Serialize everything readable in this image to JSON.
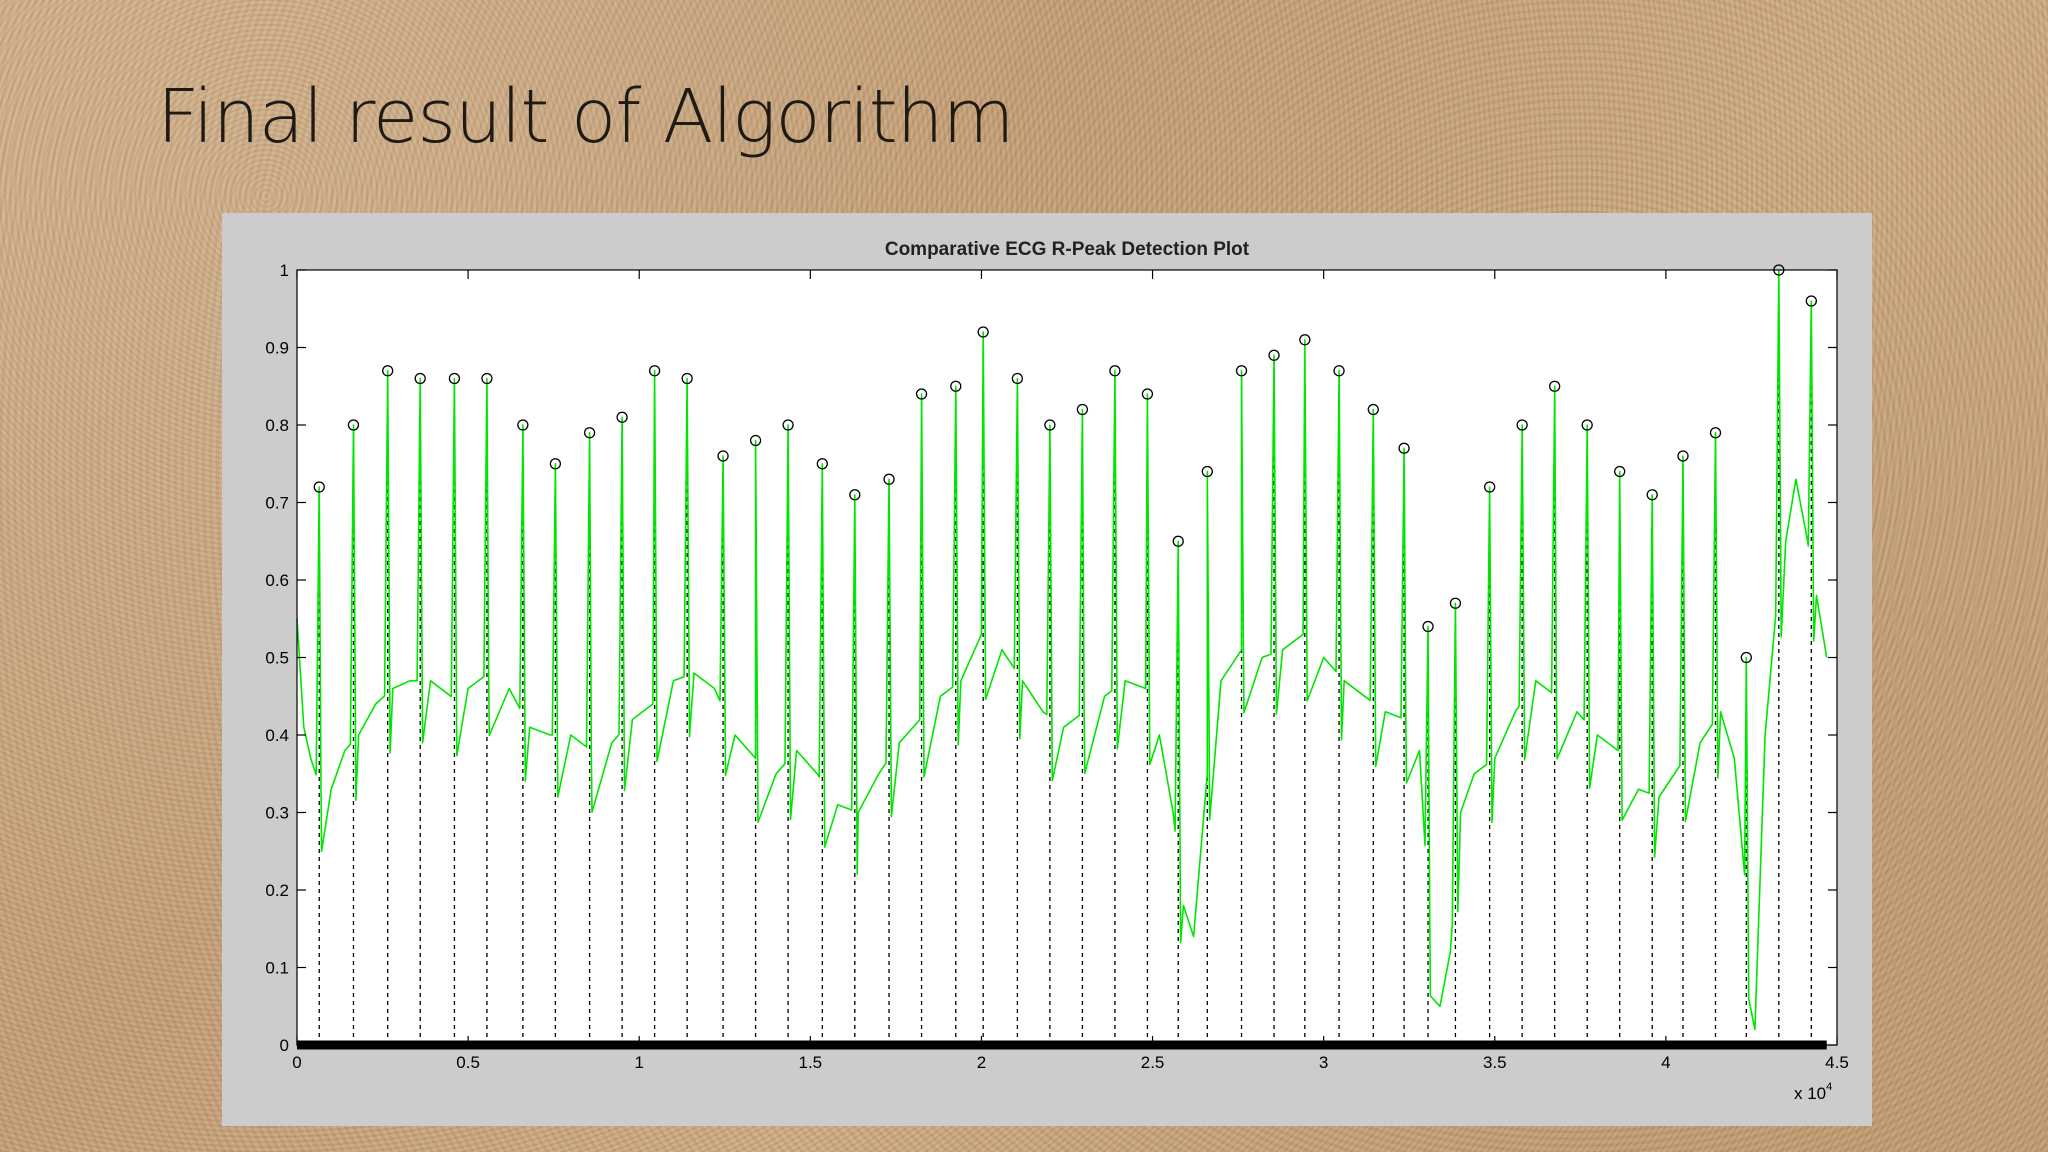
{
  "slide": {
    "title": "Final result of Algorithm"
  },
  "colors": {
    "signal": "#00e600",
    "stem": "#000000",
    "figure_bg": "#cccccc",
    "axes_bg": "#ffffff"
  },
  "chart_data": {
    "type": "line",
    "title": "Comparative ECG R-Peak Detection Plot",
    "xlabel": "",
    "ylabel": "",
    "x_exponent_label": "x 10",
    "x_exponent_power": "4",
    "xlim": [
      0,
      45000
    ],
    "ylim": [
      0,
      1
    ],
    "x_ticks": [
      0,
      5000,
      10000,
      15000,
      20000,
      25000,
      30000,
      35000,
      40000,
      45000
    ],
    "x_tick_labels": [
      "0",
      "0.5",
      "1",
      "1.5",
      "2",
      "2.5",
      "3",
      "3.5",
      "4",
      "4.5"
    ],
    "y_ticks": [
      0,
      0.1,
      0.2,
      0.3,
      0.4,
      0.5,
      0.6,
      0.7,
      0.8,
      0.9,
      1
    ],
    "y_tick_labels": [
      "0",
      "0.1",
      "0.2",
      "0.3",
      "0.4",
      "0.5",
      "0.6",
      "0.7",
      "0.8",
      "0.9",
      "1"
    ],
    "grid": false,
    "legend": "none",
    "series": [
      {
        "kind": "ecg-signal",
        "x": [
          0,
          200,
          400,
          700,
          1000,
          1400,
          1800,
          2300,
          2800,
          3300,
          3900,
          4500,
          5000,
          5600,
          6200,
          6800,
          7400,
          8000,
          8600,
          9200,
          9800,
          10400,
          11000,
          11600,
          12200,
          12800,
          13400,
          14000,
          14600,
          15200,
          15800,
          16400,
          17000,
          17600,
          18200,
          18800,
          19400,
          20000,
          20600,
          21200,
          21800,
          22400,
          23000,
          23600,
          24200,
          24800,
          25200,
          25600,
          25900,
          26200,
          26600,
          27000,
          27600,
          28200,
          28800,
          29400,
          30000,
          30600,
          31200,
          31800,
          32400,
          32800,
          33100,
          33400,
          33700,
          34000,
          34400,
          35000,
          35600,
          36200,
          36800,
          37400,
          38000,
          38600,
          39200,
          39800,
          40400,
          41000,
          41600,
          42000,
          42300,
          42600,
          42900,
          43200,
          43500,
          43800,
          44100,
          44400,
          44700
        ],
        "y": [
          0.55,
          0.41,
          0.37,
          0.33,
          0.33,
          0.38,
          0.4,
          0.44,
          0.46,
          0.47,
          0.47,
          0.45,
          0.46,
          0.48,
          0.46,
          0.41,
          0.4,
          0.4,
          0.38,
          0.39,
          0.42,
          0.44,
          0.47,
          0.48,
          0.46,
          0.4,
          0.37,
          0.35,
          0.38,
          0.35,
          0.31,
          0.3,
          0.35,
          0.39,
          0.42,
          0.45,
          0.47,
          0.53,
          0.51,
          0.47,
          0.43,
          0.41,
          0.43,
          0.45,
          0.47,
          0.46,
          0.4,
          0.3,
          0.18,
          0.14,
          0.35,
          0.47,
          0.51,
          0.5,
          0.51,
          0.53,
          0.5,
          0.47,
          0.45,
          0.43,
          0.42,
          0.38,
          0.15,
          0.05,
          0.12,
          0.3,
          0.35,
          0.37,
          0.43,
          0.47,
          0.45,
          0.43,
          0.4,
          0.38,
          0.33,
          0.32,
          0.36,
          0.39,
          0.43,
          0.37,
          0.22,
          0.02,
          0.4,
          0.55,
          0.65,
          0.73,
          0.66,
          0.58,
          0.5
        ]
      },
      {
        "kind": "r-peaks",
        "x": [
          650,
          1650,
          2650,
          3600,
          4600,
          5550,
          6600,
          7550,
          8550,
          9500,
          10450,
          11400,
          12450,
          13400,
          14350,
          15350,
          16300,
          17300,
          18250,
          19250,
          20050,
          21050,
          22000,
          22950,
          23900,
          24850,
          25750,
          26600,
          27600,
          28550,
          29450,
          30450,
          31450,
          32350,
          33050,
          33850,
          34850,
          35800,
          36750,
          37700,
          38650,
          39600,
          40500,
          41450,
          42350,
          43300,
          44250
        ],
        "y": [
          0.72,
          0.8,
          0.87,
          0.86,
          0.86,
          0.86,
          0.8,
          0.75,
          0.79,
          0.81,
          0.87,
          0.86,
          0.76,
          0.78,
          0.8,
          0.75,
          0.71,
          0.73,
          0.84,
          0.85,
          0.92,
          0.86,
          0.8,
          0.82,
          0.87,
          0.84,
          0.65,
          0.74,
          0.87,
          0.89,
          0.91,
          0.87,
          0.82,
          0.77,
          0.54,
          0.57,
          0.72,
          0.8,
          0.85,
          0.8,
          0.74,
          0.71,
          0.76,
          0.79,
          0.5,
          1.0,
          0.96
        ]
      }
    ]
  }
}
